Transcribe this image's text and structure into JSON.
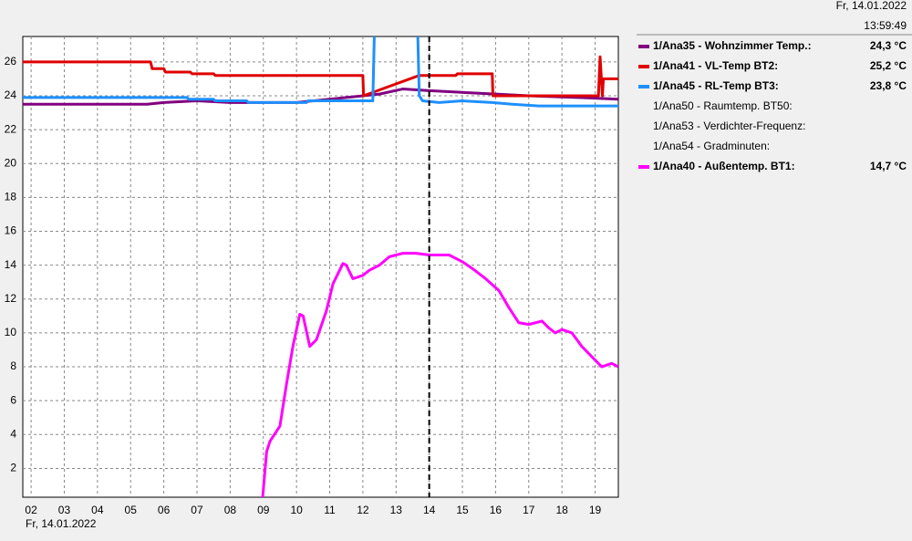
{
  "chart_data": {
    "type": "line",
    "header_date": "Fr, 14.01.2022",
    "header_time": "13:59:49",
    "footer_date": "Fr, 14.01.2022",
    "xlim": [
      1.75,
      19.7
    ],
    "ylim": [
      0.3,
      27.5
    ],
    "xticks": [
      {
        "value": 2,
        "label": "02"
      },
      {
        "value": 3,
        "label": "03"
      },
      {
        "value": 4,
        "label": "04"
      },
      {
        "value": 5,
        "label": "05"
      },
      {
        "value": 6,
        "label": "06"
      },
      {
        "value": 7,
        "label": "07"
      },
      {
        "value": 8,
        "label": "08"
      },
      {
        "value": 9,
        "label": "09"
      },
      {
        "value": 10,
        "label": "10"
      },
      {
        "value": 11,
        "label": "11"
      },
      {
        "value": 12,
        "label": "12"
      },
      {
        "value": 13,
        "label": "13"
      },
      {
        "value": 14,
        "label": "14"
      },
      {
        "value": 15,
        "label": "15"
      },
      {
        "value": 16,
        "label": "16"
      },
      {
        "value": 17,
        "label": "17"
      },
      {
        "value": 18,
        "label": "18"
      },
      {
        "value": 19,
        "label": "19"
      }
    ],
    "yticks": [
      2,
      4,
      6,
      8,
      10,
      12,
      14,
      16,
      18,
      20,
      22,
      24,
      26
    ],
    "grid": true,
    "cursor_x": 14,
    "series": [
      {
        "name": "1/Ana35 - Wohnzimmer Temp.:",
        "color": "#800080",
        "current_value": 24.3,
        "current_label": "24,3 °C",
        "x": [
          1.75,
          5.5,
          6.0,
          7.0,
          8.0,
          10.0,
          11.0,
          12.0,
          12.5,
          13.2,
          14.0,
          15.0,
          16.0,
          17.0,
          18.5,
          19.7
        ],
        "values": [
          23.5,
          23.5,
          23.6,
          23.7,
          23.6,
          23.6,
          23.8,
          24.0,
          24.1,
          24.4,
          24.3,
          24.2,
          24.1,
          24.0,
          23.9,
          23.8
        ]
      },
      {
        "name": "1/Ana41 - VL-Temp BT2:",
        "color": "#e00000",
        "current_value": 25.2,
        "current_label": "25,2 °C",
        "x": [
          1.75,
          5.6,
          5.65,
          6.0,
          6.05,
          6.8,
          6.85,
          7.5,
          7.55,
          12.0,
          12.02,
          12.3,
          13.7,
          14.8,
          14.85,
          15.9,
          15.92,
          19.1,
          19.15,
          19.22,
          19.25,
          19.7
        ],
        "values": [
          26.0,
          26.0,
          25.6,
          25.6,
          25.4,
          25.4,
          25.3,
          25.3,
          25.2,
          25.2,
          24.0,
          24.2,
          25.2,
          25.2,
          25.3,
          25.3,
          24.0,
          24.0,
          26.3,
          24.0,
          25.0,
          25.0
        ]
      },
      {
        "name": "1/Ana45 - RL-Temp BT3:",
        "color": "#1e90ff",
        "current_value": 23.8,
        "current_label": "23,8 °C",
        "x": [
          1.75,
          6.7,
          6.75,
          7.5,
          7.55,
          8.5,
          8.55,
          10.3,
          10.35,
          12.3,
          12.35,
          13.0,
          13.65,
          13.7,
          13.8,
          14.3,
          15.0,
          15.9,
          16.5,
          17.3,
          19.7
        ],
        "values": [
          23.9,
          23.9,
          23.8,
          23.8,
          23.7,
          23.7,
          23.6,
          23.6,
          23.7,
          23.7,
          28.0,
          null,
          28.0,
          24.0,
          23.7,
          23.6,
          23.7,
          23.6,
          23.5,
          23.4,
          23.4
        ]
      },
      {
        "name": "1/Ana50 - Raumtemp. BT50:"
      },
      {
        "name": "1/Ana53 - Verdichter-Frequenz:"
      },
      {
        "name": "1/Ana54 - Gradminuten:"
      },
      {
        "name": "1/Ana40 - Außentemp. BT1:",
        "color": "#ff00ff",
        "current_value": 14.7,
        "current_label": "14,7 °C",
        "x": [
          8.98,
          9.1,
          9.2,
          9.5,
          9.7,
          9.9,
          10.1,
          10.2,
          10.4,
          10.6,
          10.9,
          11.1,
          11.4,
          11.5,
          11.7,
          12.0,
          12.2,
          12.5,
          12.8,
          13.2,
          13.6,
          14.0,
          14.6,
          15.0,
          15.3,
          15.7,
          16.1,
          16.4,
          16.7,
          17.0,
          17.4,
          17.6,
          17.8,
          18.0,
          18.3,
          18.6,
          18.9,
          19.2,
          19.5,
          19.7
        ],
        "values": [
          0.3,
          3.0,
          3.6,
          4.5,
          7.0,
          9.3,
          11.1,
          11.0,
          9.2,
          9.6,
          11.3,
          12.9,
          14.1,
          14.0,
          13.2,
          13.4,
          13.7,
          14.0,
          14.5,
          14.7,
          14.7,
          14.6,
          14.6,
          14.2,
          13.8,
          13.2,
          12.5,
          11.5,
          10.6,
          10.5,
          10.7,
          10.3,
          10.0,
          10.2,
          10.0,
          9.2,
          8.6,
          8.0,
          8.2,
          8.0
        ]
      }
    ]
  }
}
